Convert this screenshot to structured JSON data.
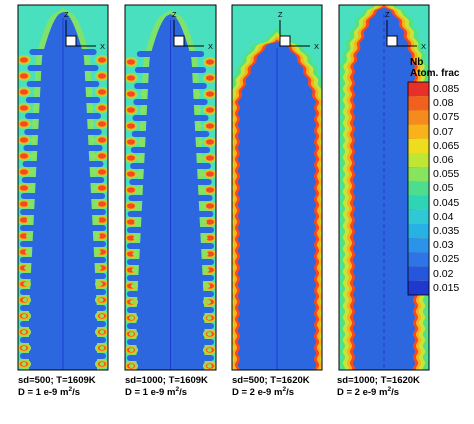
{
  "panels": [
    {
      "label_line1": "sd=500; T=1609K",
      "label_line2_prefix": "D = 1 e-9 m",
      "label_line2_exp": "2",
      "label_line2_suffix": "/s",
      "morphology": "dendritic"
    },
    {
      "label_line1": "sd=1000; T=1609K",
      "label_line2_prefix": "D = 1 e-9 m",
      "label_line2_exp": "2",
      "label_line2_suffix": "/s",
      "morphology": "dendritic"
    },
    {
      "label_line1": "sd=500; T=1620K",
      "label_line2_prefix": "D = 2 e-9 m",
      "label_line2_exp": "2",
      "label_line2_suffix": "/s",
      "morphology": "cellular"
    },
    {
      "label_line1": "sd=1000; T=1620K",
      "label_line2_prefix": "D = 2 e-9 m",
      "label_line2_exp": "2",
      "label_line2_suffix": "/s",
      "morphology": "cellular"
    }
  ],
  "axes_icon": {
    "z_label": "Z",
    "x_label": "X"
  },
  "legend": {
    "title_line1": "Nb",
    "title_line2": "Atom. frac",
    "levels": [
      "0.085",
      "0.08",
      "0.075",
      "0.07",
      "0.065",
      "0.06",
      "0.055",
      "0.05",
      "0.045",
      "0.04",
      "0.035",
      "0.03",
      "0.025",
      "0.02",
      "0.015"
    ],
    "colors": [
      "#e8302a",
      "#f2601f",
      "#f58a1d",
      "#f9b21a",
      "#eedd1e",
      "#bfe635",
      "#86e45f",
      "#4edc8e",
      "#2fd4b4",
      "#30c8d4",
      "#27b2e6",
      "#2b93e9",
      "#2e74e6",
      "#2756de",
      "#1f39cf"
    ]
  },
  "field_colors": {
    "melt": "#49e0c0",
    "halo": "#39d3b9",
    "solid": "#2c67e0",
    "core_line": "#1f39cf",
    "droplet_core": "#f5491f",
    "droplet_ring": "#f9b21a",
    "droplet_halo": "#8fe25a"
  }
}
